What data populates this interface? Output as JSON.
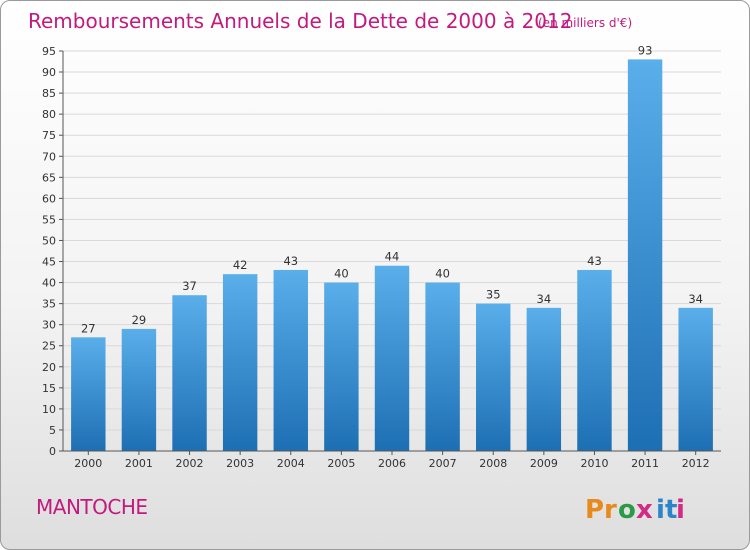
{
  "header": {
    "title": "Remboursements Annuels de la Dette de 2000 à 2012",
    "subtitle": "(en milliers d'€)"
  },
  "footer": {
    "commune": "MANTOCHE",
    "logo_text": "Proxiti",
    "logo_letters": [
      {
        "ch": "P",
        "color": "#e8891b"
      },
      {
        "ch": "r",
        "color": "#e8891b"
      },
      {
        "ch": "o",
        "color": "#2a9a46"
      },
      {
        "ch": "x",
        "color": "#d22b85"
      },
      {
        "ch": "i",
        "color": "#2b85c8"
      },
      {
        "ch": "t",
        "color": "#2b85c8"
      },
      {
        "ch": "i",
        "color": "#d22b85"
      }
    ]
  },
  "colors": {
    "title": "#c21a7e",
    "bar_top": "#5aaeea",
    "bar_bottom": "#1d6fb3",
    "grid": "#d9d9d9"
  },
  "chart_data": {
    "type": "bar",
    "title": "Remboursements Annuels de la Dette de 2000 à 2012",
    "subtitle": "(en milliers d'€)",
    "categories": [
      "2000",
      "2001",
      "2002",
      "2003",
      "2004",
      "2005",
      "2006",
      "2007",
      "2008",
      "2009",
      "2010",
      "2011",
      "2012"
    ],
    "values": [
      27,
      29,
      37,
      42,
      43,
      40,
      44,
      40,
      35,
      34,
      43,
      93,
      34
    ],
    "ylim": [
      0,
      95
    ],
    "yticks": [
      0,
      5,
      10,
      15,
      20,
      25,
      30,
      35,
      40,
      45,
      50,
      55,
      60,
      65,
      70,
      75,
      80,
      85,
      90,
      95
    ],
    "grid": true
  }
}
